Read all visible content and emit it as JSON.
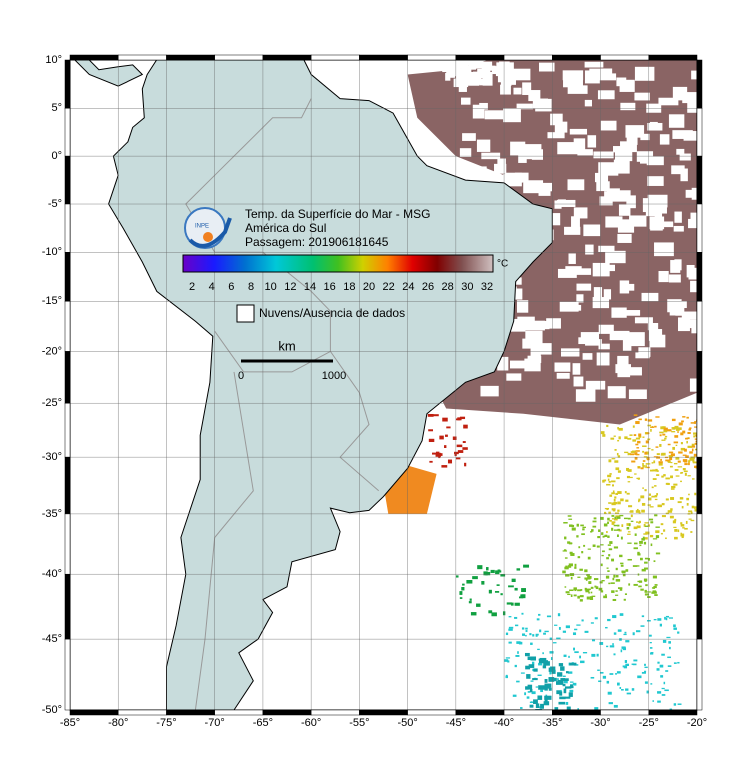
{
  "title": {
    "line1": "Temp. da Superfície do Mar - MSG",
    "line2": "América do Sul",
    "line3": "Passagem: 201906181645"
  },
  "logo": "INPE",
  "colorbar": {
    "unit": "°C",
    "labels": [
      "2",
      "4",
      "6",
      "8",
      "10",
      "12",
      "14",
      "16",
      "18",
      "20",
      "22",
      "24",
      "26",
      "28",
      "30",
      "32"
    ]
  },
  "legend": {
    "clouds": "Nuvens/Ausencia de dados"
  },
  "scale": {
    "unit": "km",
    "start": "0",
    "end": "1000"
  },
  "axes": {
    "lat_labels": [
      "10°",
      "5°",
      "0°",
      "-5°",
      "-10°",
      "-15°",
      "-20°",
      "-25°",
      "-30°",
      "-35°",
      "-40°",
      "-45°",
      "-50°"
    ],
    "lon_labels": [
      "-85°",
      "-80°",
      "-75°",
      "-70°",
      "-65°",
      "-60°",
      "-55°",
      "-50°",
      "-45°",
      "-40°",
      "-35°",
      "-30°",
      "-25°",
      "-20°"
    ]
  }
}
